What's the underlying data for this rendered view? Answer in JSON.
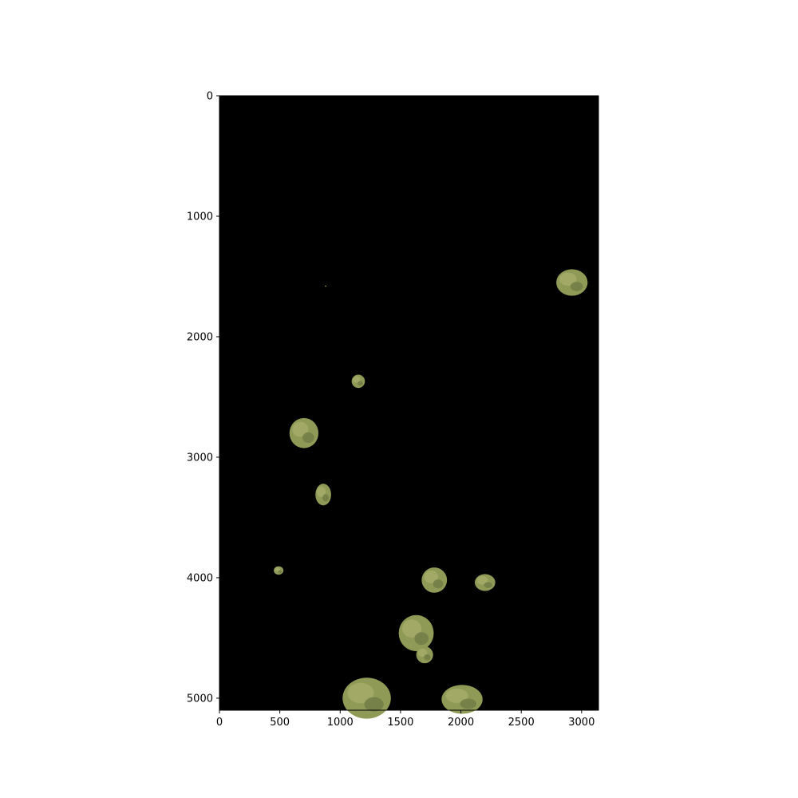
{
  "chart_data": {
    "type": "image",
    "title": "",
    "xlabel": "",
    "ylabel": "",
    "xlim": [
      0,
      3140
    ],
    "ylim": [
      5100,
      0
    ],
    "x_ticks": [
      0,
      500,
      1000,
      1500,
      2000,
      2500,
      3000
    ],
    "y_ticks": [
      0,
      1000,
      2000,
      3000,
      4000,
      5000
    ],
    "x_tick_labels": [
      "0",
      "500",
      "1000",
      "1500",
      "2000",
      "2500",
      "3000"
    ],
    "y_tick_labels": [
      "0",
      "1000",
      "2000",
      "3000",
      "4000",
      "5000"
    ],
    "background_color": "#000000",
    "patch_colors": [
      "#8e9a55",
      "#a7ad6b",
      "#6f7a45",
      "#5e5a48"
    ],
    "patches": [
      {
        "x": 2920,
        "y": 1550,
        "rx": 130,
        "ry": 110
      },
      {
        "x": 1150,
        "y": 2370,
        "rx": 55,
        "ry": 55
      },
      {
        "x": 700,
        "y": 2800,
        "rx": 120,
        "ry": 125
      },
      {
        "x": 860,
        "y": 3310,
        "rx": 65,
        "ry": 90
      },
      {
        "x": 490,
        "y": 3940,
        "rx": 40,
        "ry": 35
      },
      {
        "x": 1780,
        "y": 4020,
        "rx": 105,
        "ry": 105
      },
      {
        "x": 2200,
        "y": 4040,
        "rx": 85,
        "ry": 70
      },
      {
        "x": 1630,
        "y": 4460,
        "rx": 145,
        "ry": 150
      },
      {
        "x": 1700,
        "y": 4640,
        "rx": 70,
        "ry": 70
      },
      {
        "x": 1220,
        "y": 5000,
        "rx": 200,
        "ry": 170
      },
      {
        "x": 2010,
        "y": 5010,
        "rx": 170,
        "ry": 120
      },
      {
        "x": 880,
        "y": 1580,
        "rx": 6,
        "ry": 6
      }
    ]
  }
}
